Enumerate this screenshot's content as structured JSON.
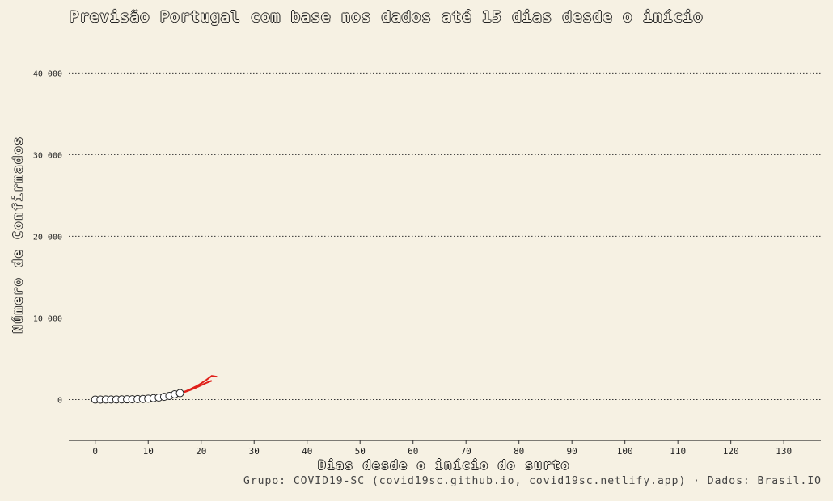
{
  "chart_data": {
    "type": "scatter",
    "title": "Previsão Portugal com base nos dados até 15 dias desde o início",
    "xlabel": "Dias desde o início do surto",
    "ylabel": "Número de Confirmados",
    "caption": "Grupo: COVID19-SC (covid19sc.github.io, covid19sc.netlify.app)   ·   Dados: Brasil.IO",
    "xlim": [
      -5,
      137
    ],
    "ylim": [
      -5000,
      43000
    ],
    "x_ticks": [
      "0",
      "10",
      "20",
      "30",
      "40",
      "50",
      "60",
      "70",
      "80",
      "90",
      "100",
      "110",
      "120",
      "130"
    ],
    "y_ticks": [
      {
        "value": 0,
        "label": "0"
      },
      {
        "value": 10000,
        "label": "10 000"
      },
      {
        "value": 20000,
        "label": "20 000"
      },
      {
        "value": 30000,
        "label": "30 000"
      },
      {
        "value": 40000,
        "label": "40 000"
      }
    ],
    "grid": "horizontal-dotted",
    "series": [
      {
        "kind": "observed",
        "marker": "open-circle",
        "color": "#ffffff",
        "x": [
          0,
          1,
          2,
          3,
          4,
          5,
          6,
          7,
          8,
          9,
          10,
          11,
          12,
          13,
          14,
          15,
          16
        ],
        "y": [
          2,
          4,
          6,
          9,
          13,
          21,
          30,
          41,
          59,
          78,
          112,
          169,
          245,
          331,
          448,
          642,
          785
        ]
      },
      {
        "kind": "forecast",
        "color": "#e0201a",
        "x": [
          16,
          17,
          18,
          19,
          20,
          21,
          22,
          23
        ],
        "y": [
          785,
          1000,
          1280,
          1600,
          1980,
          2420,
          2900,
          2800
        ]
      },
      {
        "kind": "forecast-lower",
        "color": "#e0201a",
        "x": [
          16,
          17,
          18,
          19,
          20,
          21,
          22
        ],
        "y": [
          785,
          950,
          1180,
          1450,
          1750,
          2050,
          2300
        ]
      }
    ]
  }
}
